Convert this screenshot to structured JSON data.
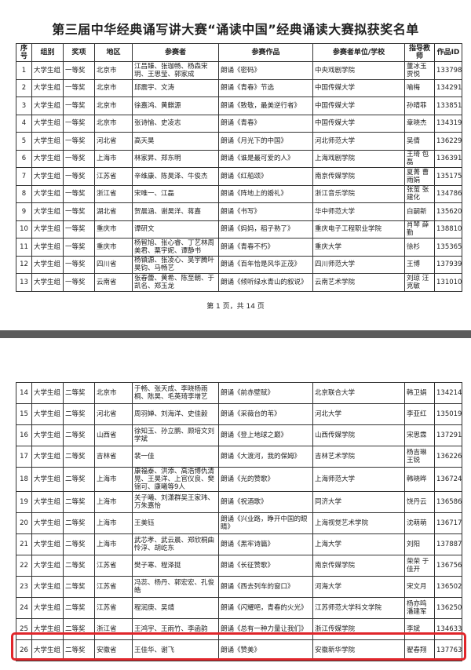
{
  "title": "第三届中华经典诵写讲大赛“诵读中国”经典诵读大赛拟获奖名单",
  "header": [
    "序号",
    "组别",
    "奖项",
    "地区",
    "参赛者",
    "参赛作品",
    "参赛者单位/学校",
    "指导教师",
    "作品ID"
  ],
  "page1": {
    "rows": [
      [
        "1",
        "大学生组",
        "一等奖",
        "北京市",
        "江昌臻、张珈畅、杨森宋玥、王思莹、郭家成",
        "朗诵《密码》",
        "中央戏剧学院",
        "董冰玉 贾悦",
        "133798"
      ],
      [
        "2",
        "大学生组",
        "一等奖",
        "北京市",
        "邱震宇、文涛",
        "朗诵《青春》节选",
        "中国传媒大学",
        "喻梅",
        "134291"
      ],
      [
        "3",
        "大学生组",
        "一等奖",
        "北京市",
        "徐嘉鸿、黄麒源",
        "朗诵《致敬，最美逆行者》",
        "中国传媒大学",
        "孙晴菲",
        "133851"
      ],
      [
        "4",
        "大学生组",
        "一等奖",
        "北京市",
        "张诗愉、史凌志",
        "朗诵《青春》",
        "中国传媒大学",
        "章晓杰",
        "134319"
      ],
      [
        "5",
        "大学生组",
        "一等奖",
        "河北省",
        "高天昊",
        "朗诵《月光下的中国》",
        "河北师范大学",
        "吴倩",
        "136229"
      ],
      [
        "6",
        "大学生组",
        "一等奖",
        "上海市",
        "林家昇、郑东明",
        "朗诵《谁是最可爱的人》",
        "上海戏剧学院",
        "王琦 包磊",
        "136391"
      ],
      [
        "7",
        "大学生组",
        "一等奖",
        "江苏省",
        "辛维康、陈昊泽、牛俊杰",
        "朗诵《红船颂》",
        "南京传媒学院",
        "夏菁 曹雨娟",
        "135175"
      ],
      [
        "8",
        "大学生组",
        "一等奖",
        "浙江省",
        "宋唯一、江磊",
        "朗诵《阵地上的婚礼》",
        "浙江音乐学院",
        "张萤 张建化",
        "134786"
      ],
      [
        "9",
        "大学生组",
        "一等奖",
        "湖北省",
        "贺晨涵、谢昊洋、蒋嘉",
        "朗诵《书写》",
        "华中师范大学",
        "白嗣新",
        "135620"
      ],
      [
        "10",
        "大学生组",
        "一等奖",
        "重庆市",
        "谭研文",
        "朗诵《妈妈，稻子熟了》",
        "重庆电子工程职业学院",
        "肖琴 薛勤",
        "138810"
      ],
      [
        "11",
        "大学生组",
        "一等奖",
        "重庆市",
        "杨智旭、张心睿、丁艺林周美君、粟宇妮、谭静书",
        "朗诵《青春不朽》",
        "重庆大学",
        "徐杉",
        "135365"
      ],
      [
        "12",
        "大学生组",
        "一等奖",
        "四川省",
        "杨镇源、张凌心、吴宇腾叶昊钧、马畅艺",
        "朗诵《百年恰是风华正茂》",
        "四川师范大学",
        "王博",
        "137939"
      ],
      [
        "13",
        "大学生组",
        "一等奖",
        "云南省",
        "张春蕾、黄希、陈至朝、于凯名、郑玉龙",
        "朗诵《倾听绿水青山的叙说》",
        "云南艺术学院",
        "刘琼 汪克敏",
        "131010"
      ]
    ],
    "footer": "第 1 页，共 14 页"
  },
  "page2": {
    "rows": [
      [
        "14",
        "大学生组",
        "二等奖",
        "北京市",
        "于畅、张天成、李晓杨雨桐、陈昊、毛英琦李增艺",
        "朗诵《前赤壁赋》",
        "北京联合大学",
        "韩卫娟",
        "134214"
      ],
      [
        "15",
        "大学生组",
        "二等奖",
        "河北省",
        "周羽婵、刘海洋、史佳毅",
        "朗诵《采薇台的苇》",
        "河北大学",
        "李亚红",
        "135019"
      ],
      [
        "16",
        "大学生组",
        "二等奖",
        "山西省",
        "徐知玉、孙立鹏、顾培文刘学斌",
        "朗诵《登上地球之巅》",
        "山西传媒学院",
        "宋思霖",
        "137291"
      ],
      [
        "17",
        "大学生组",
        "二等奖",
        "吉林省",
        "裴一佳",
        "朗诵《大渡河，我的保姆》",
        "吉林艺术学院",
        "杨吉琳 王锐",
        "136226"
      ],
      [
        "18",
        "大学生组",
        "二等奖",
        "上海市",
        "康福泰、洪添、高浩博仇清晃、王昊洋、上官仪良、樊锦可、康曦等9人",
        "朗诵《光的赞歌》",
        "上海师范大学",
        "韩晓晔",
        "136724"
      ],
      [
        "19",
        "大学生组",
        "二等奖",
        "上海市",
        "关子曦、刘潇群吴王家玮、万朱嘉怡",
        "朗诵《祝酒歌》",
        "同济大学",
        "饶丹云",
        "136586"
      ],
      [
        "20",
        "大学生组",
        "二等奖",
        "上海市",
        "王美钰",
        "朗诵《兴业路，睁开中国的眼睛》",
        "上海视觉艺术学院",
        "沈萌萌",
        "136717"
      ],
      [
        "21",
        "大学生组",
        "二等奖",
        "上海市",
        "武芯孝、武云晨、郑欣桐曲怜淳、胡屹东",
        "朗诵《黑牢诗篇》",
        "上海大学",
        "刘阳",
        "137887"
      ],
      [
        "22",
        "大学生组",
        "二等奖",
        "江苏省",
        "樊子寒、程泽挺",
        "朗诵《长征赞歌》",
        "南京传媒学院",
        "荣荣 于佳开",
        "136756"
      ],
      [
        "23",
        "大学生组",
        "二等奖",
        "江苏省",
        "冯蕊、杨丹、郭宏宏、孔俊皓",
        "朗诵《西去列车的窗口》",
        "河海大学",
        "宋文月",
        "136502"
      ],
      [
        "24",
        "大学生组",
        "二等奖",
        "江苏省",
        "程润庚、吴靖",
        "朗诵《闪耀吧，青春的火光》",
        "江苏师范大学科文学院",
        "杨亦鸣 潘建军",
        "136250"
      ],
      [
        "25",
        "大学生组",
        "二等奖",
        "浙江省",
        "王鸿宇、王雨竹、李函韵",
        "朗诵《总有一种力量让我们》",
        "浙江传媒学院",
        "李斌",
        "134633"
      ],
      [
        "26",
        "大学生组",
        "二等奖",
        "安徽省",
        "王佳华、谢飞",
        "朗诵《赞美》",
        "安徽新华学院",
        "翟春翔",
        "137763"
      ]
    ]
  }
}
